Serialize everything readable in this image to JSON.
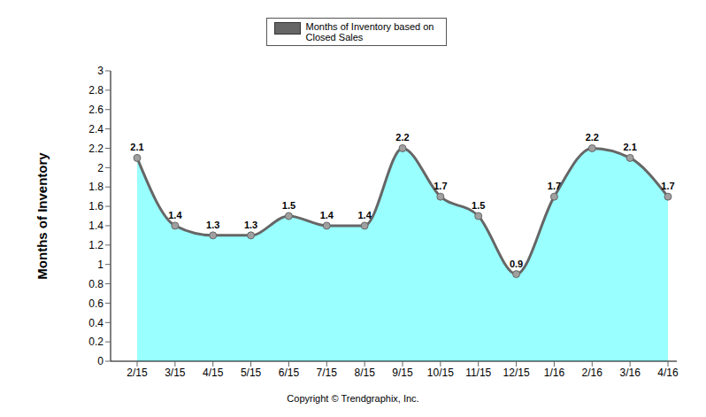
{
  "chart_data": {
    "type": "area",
    "y_label": "Months of Inventory",
    "annotations": [
      "Copyright © Trendgraphix, Inc."
    ],
    "categories": [
      "2/15",
      "3/15",
      "4/15",
      "5/15",
      "6/15",
      "7/15",
      "8/15",
      "9/15",
      "10/15",
      "11/15",
      "12/15",
      "1/16",
      "2/16",
      "3/16",
      "4/16"
    ],
    "series": [
      {
        "name": "Months of Inventory based on Closed Sales",
        "color": "#99ffff",
        "values": [
          2.1,
          1.4,
          1.3,
          1.3,
          1.5,
          1.4,
          1.4,
          2.2,
          1.7,
          1.5,
          0.9,
          1.7,
          2.2,
          2.1,
          1.7
        ]
      }
    ],
    "ylim": [
      0,
      3
    ],
    "yticks": [
      0,
      0.2,
      0.4,
      0.6,
      0.8,
      1,
      1.2,
      1.4,
      1.6,
      1.8,
      2,
      2.2,
      2.4,
      2.6,
      2.8,
      3
    ],
    "grid": false,
    "legend": "top",
    "data_labels": true,
    "marker": "circle"
  }
}
